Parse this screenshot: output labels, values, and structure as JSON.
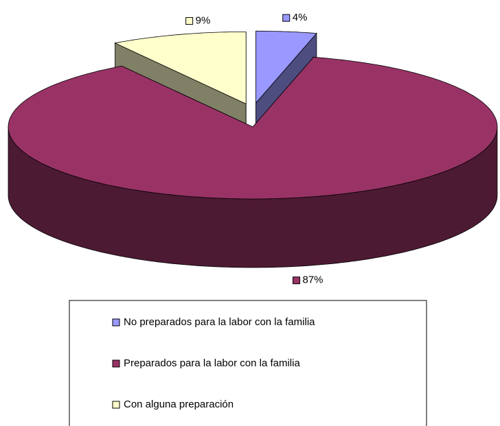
{
  "chart_data": {
    "type": "pie",
    "categories": [
      "No preparados para la labor con la familia",
      "Preparados para la labor con la familia",
      "Con alguna preparación"
    ],
    "values": [
      4,
      87,
      9
    ],
    "value_labels": [
      "4%",
      "87%",
      "9%"
    ],
    "colors": [
      "#9999ff",
      "#993366",
      "#ffffcc"
    ]
  }
}
